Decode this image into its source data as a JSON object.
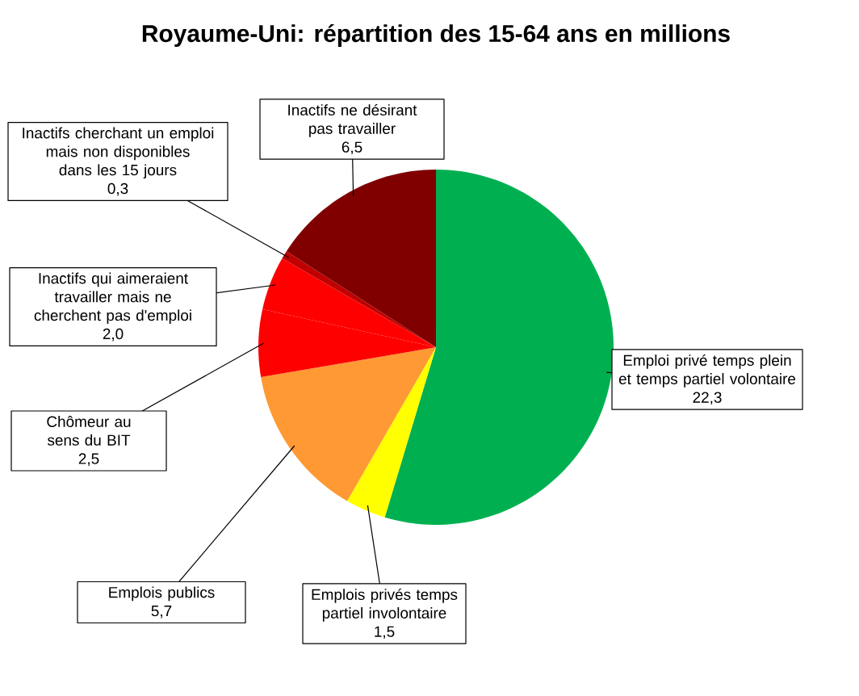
{
  "chart_data": {
    "type": "pie",
    "title": "Royaume-Uni: répartition des 15-64 ans en millions",
    "categories": [
      "Emploi privé temps plein et temps partiel volontaire",
      "Emplois privés temps partiel involontaire",
      "Emplois publics",
      "Chômeur au sens du BIT",
      "Inactifs qui aimeraient travailler mais ne cherchent pas d'emploi",
      "Inactifs cherchant un emploi mais non disponibles dans les 15 jours",
      "Inactifs ne désirant pas travailler"
    ],
    "values": [
      22.3,
      1.5,
      5.7,
      2.5,
      2.0,
      0.3,
      6.5
    ],
    "value_labels": [
      "22,3",
      "1,5",
      "5,7",
      "2,5",
      "2,0",
      "0,3",
      "6,5"
    ],
    "colors": [
      "#00b050",
      "#ffff00",
      "#ff9933",
      "#ff0000",
      "#ff0000",
      "#c00000",
      "#800000"
    ]
  }
}
